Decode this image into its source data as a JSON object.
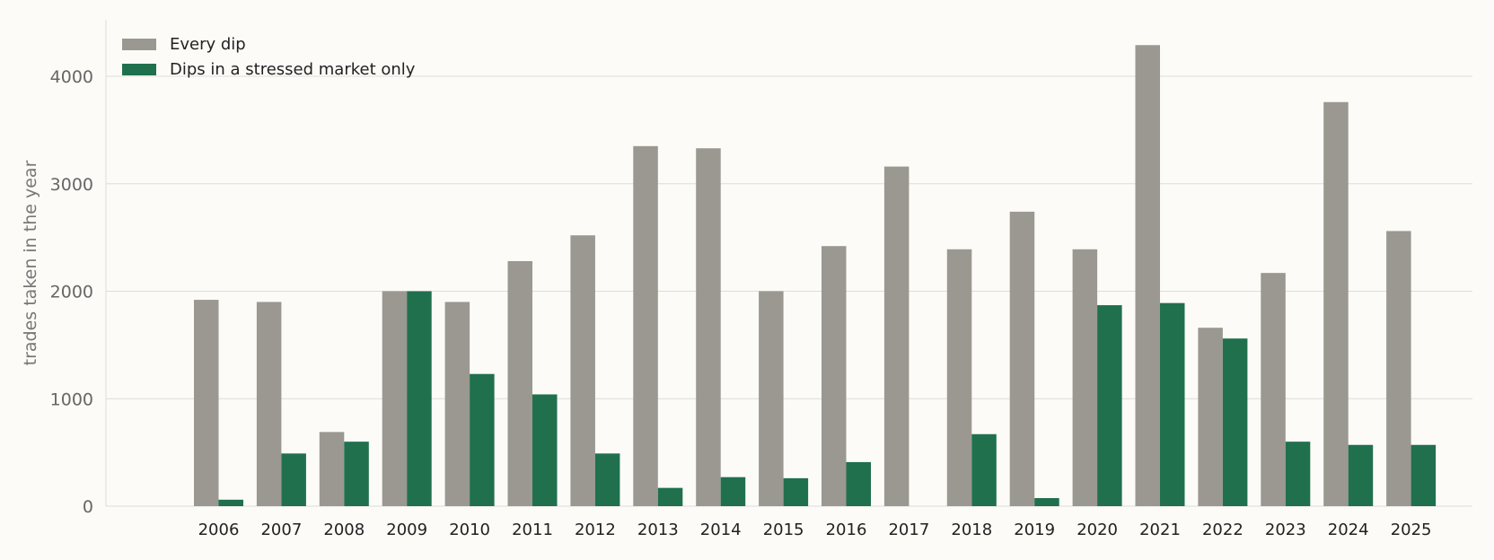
{
  "chart_data": {
    "type": "bar",
    "title": "",
    "xlabel": "",
    "ylabel": "trades taken in the year",
    "ylim": [
      0,
      4500
    ],
    "yticks": [
      0,
      1000,
      2000,
      3000,
      4000
    ],
    "grid": "horizontal",
    "legend_position": "top-left",
    "categories": [
      "2006",
      "2007",
      "2008",
      "2009",
      "2010",
      "2011",
      "2012",
      "2013",
      "2014",
      "2015",
      "2016",
      "2017",
      "2018",
      "2019",
      "2020",
      "2021",
      "2022",
      "2023",
      "2024",
      "2025"
    ],
    "series": [
      {
        "name": "Every dip",
        "color": "#9a9890",
        "values": [
          1920,
          1900,
          690,
          2000,
          1900,
          2280,
          2520,
          3350,
          3330,
          2000,
          2420,
          3160,
          2390,
          2740,
          2390,
          4290,
          1660,
          2170,
          3760,
          2560
        ]
      },
      {
        "name": "Dips in a stressed market only",
        "color": "#20704e",
        "values": [
          60,
          490,
          600,
          2000,
          1230,
          1040,
          490,
          170,
          270,
          260,
          410,
          0,
          670,
          75,
          1870,
          1890,
          1560,
          600,
          570,
          570
        ]
      }
    ]
  }
}
